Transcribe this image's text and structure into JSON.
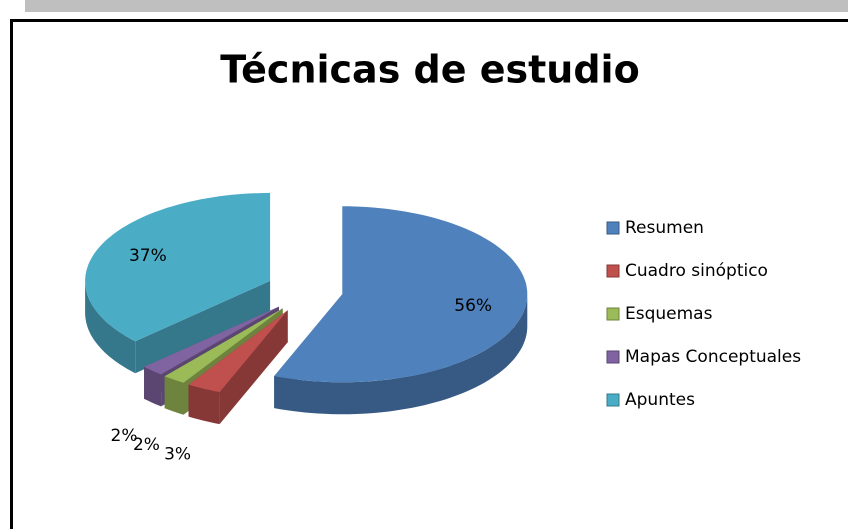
{
  "chart_data": {
    "type": "pie",
    "title": "Técnicas de estudio",
    "categories": [
      "Resumen",
      "Cuadro sinóptico",
      "Esquemas",
      "Mapas Conceptuales",
      "Apuntes"
    ],
    "values": [
      56,
      3,
      2,
      2,
      37
    ],
    "value_labels": [
      "56%",
      "3%",
      "2%",
      "2%",
      "37%"
    ],
    "colors": [
      "#4f81bd",
      "#c0504d",
      "#9bbb59",
      "#8064a2",
      "#4bacc6"
    ],
    "legend": "right"
  }
}
